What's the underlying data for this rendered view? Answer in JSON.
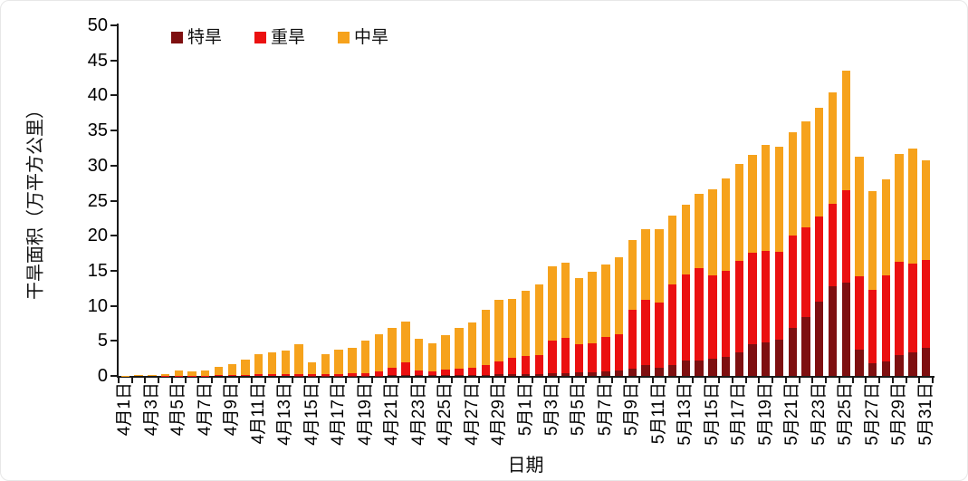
{
  "chart_data": {
    "type": "bar",
    "stacked": true,
    "xlabel": "日期",
    "ylabel": "干旱面积（万平方公里）",
    "ylim": [
      0,
      50
    ],
    "ytick_step": 5,
    "grid": false,
    "legend_position": "top",
    "xtick_label_every": 2,
    "categories": [
      "4月1日",
      "4月2日",
      "4月3日",
      "4月4日",
      "4月5日",
      "4月6日",
      "4月7日",
      "4月8日",
      "4月9日",
      "4月10日",
      "4月11日",
      "4月12日",
      "4月13日",
      "4月14日",
      "4月15日",
      "4月16日",
      "4月17日",
      "4月18日",
      "4月19日",
      "4月20日",
      "4月21日",
      "4月22日",
      "4月23日",
      "4月24日",
      "4月25日",
      "4月26日",
      "4月27日",
      "4月28日",
      "4月29日",
      "4月30日",
      "5月1日",
      "5月2日",
      "5月3日",
      "5月4日",
      "5月5日",
      "5月6日",
      "5月7日",
      "5月8日",
      "5月9日",
      "5月10日",
      "5月11日",
      "5月12日",
      "5月13日",
      "5月14日",
      "5月15日",
      "5月16日",
      "5月17日",
      "5月18日",
      "5月19日",
      "5月20日",
      "5月21日",
      "5月22日",
      "5月23日",
      "5月24日",
      "5月25日",
      "5月26日",
      "5月27日",
      "5月28日",
      "5月29日",
      "5月30日",
      "5月31日"
    ],
    "series": [
      {
        "name": "特旱",
        "color": "#7E0F10",
        "values": [
          0,
          0,
          0,
          0,
          0,
          0,
          0,
          0,
          0,
          0,
          0,
          0,
          0,
          0.05,
          0.05,
          0.05,
          0.05,
          0.05,
          0.05,
          0.05,
          0.1,
          0.1,
          0.1,
          0.1,
          0.1,
          0.1,
          0.15,
          0.15,
          0.2,
          0.2,
          0.25,
          0.3,
          0.4,
          0.45,
          0.5,
          0.55,
          0.6,
          0.8,
          1.0,
          1.5,
          1.2,
          1.6,
          2.2,
          2.2,
          2.4,
          2.7,
          3.4,
          4.5,
          4.8,
          5.2,
          6.8,
          8.4,
          10.6,
          12.8,
          13.3,
          3.7,
          1.8,
          2.1,
          3.0,
          3.4,
          4.0
        ]
      },
      {
        "name": "重旱",
        "color": "#EB1010",
        "values": [
          0,
          0,
          0,
          0.05,
          0.05,
          0.05,
          0.05,
          0.1,
          0.1,
          0.15,
          0.2,
          0.2,
          0.25,
          0.25,
          0.2,
          0.25,
          0.25,
          0.3,
          0.3,
          0.55,
          1.1,
          1.9,
          0.7,
          0.5,
          0.8,
          1.0,
          1.05,
          1.45,
          1.9,
          2.4,
          2.65,
          2.7,
          4.7,
          4.95,
          4.0,
          4.15,
          4.9,
          5.1,
          8.4,
          9.4,
          9.3,
          11.5,
          12.3,
          13.2,
          11.9,
          12.3,
          13.0,
          13.1,
          13.0,
          12.5,
          13.2,
          12.8,
          12.1,
          11.8,
          13.2,
          10.5,
          10.5,
          12.2,
          13.3,
          12.6,
          12.5
        ]
      },
      {
        "name": "中旱",
        "color": "#F6A21C",
        "values": [
          0.05,
          0.08,
          0.15,
          0.25,
          0.75,
          0.65,
          0.75,
          1.2,
          1.6,
          2.15,
          2.9,
          3.2,
          3.35,
          4.2,
          1.75,
          2.8,
          3.4,
          3.65,
          4.65,
          5.3,
          5.7,
          5.7,
          4.5,
          4.0,
          4.9,
          5.7,
          6.4,
          7.8,
          8.8,
          8.4,
          9.2,
          10.0,
          10.6,
          10.7,
          9.4,
          10.1,
          10.4,
          11.0,
          10.0,
          10.0,
          10.4,
          9.8,
          9.9,
          10.6,
          12.3,
          13.2,
          13.8,
          13.9,
          15.2,
          15.0,
          14.8,
          15.1,
          15.5,
          15.9,
          17.0,
          17.1,
          14.1,
          13.7,
          15.3,
          16.4,
          14.3
        ]
      }
    ]
  }
}
